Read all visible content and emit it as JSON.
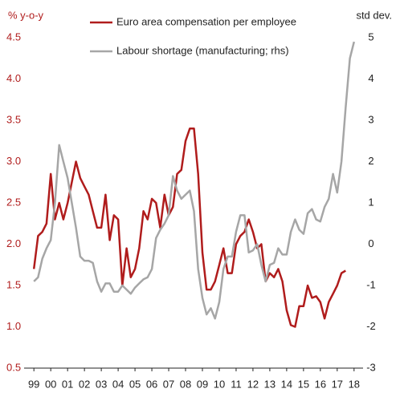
{
  "chart_data": {
    "type": "line",
    "y_label": "% y-o-y",
    "y2_label": "std dev.",
    "xlim": [
      1998.8,
      2018.2
    ],
    "xticks": [
      {
        "value": 1999,
        "label": "99"
      },
      {
        "value": 2000,
        "label": "00"
      },
      {
        "value": 2001,
        "label": "01"
      },
      {
        "value": 2002,
        "label": "02"
      },
      {
        "value": 2003,
        "label": "03"
      },
      {
        "value": 2004,
        "label": "04"
      },
      {
        "value": 2005,
        "label": "05"
      },
      {
        "value": 2006,
        "label": "06"
      },
      {
        "value": 2007,
        "label": "07"
      },
      {
        "value": 2008,
        "label": "08"
      },
      {
        "value": 2009,
        "label": "09"
      },
      {
        "value": 2010,
        "label": "10"
      },
      {
        "value": 2011,
        "label": "11"
      },
      {
        "value": 2012,
        "label": "12"
      },
      {
        "value": 2013,
        "label": "13"
      },
      {
        "value": 2014,
        "label": "14"
      },
      {
        "value": 2015,
        "label": "15"
      },
      {
        "value": 2016,
        "label": "16"
      },
      {
        "value": 2017,
        "label": "17"
      },
      {
        "value": 2018,
        "label": "18"
      }
    ],
    "ylim": [
      0.5,
      4.5
    ],
    "yticks": [
      0.5,
      1.0,
      1.5,
      2.0,
      2.5,
      3.0,
      3.5,
      4.0,
      4.5
    ],
    "ytick_labels": [
      "0.5",
      "1.0",
      "1.5",
      "2.0",
      "2.5",
      "3.0",
      "3.5",
      "4.0",
      "4.5"
    ],
    "y2lim": [
      -3,
      5
    ],
    "y2ticks": [
      -3,
      -2,
      -1,
      0,
      1,
      2,
      3,
      4,
      5
    ],
    "grid": false,
    "series": [
      {
        "name": "Euro area compensation per employee",
        "color": "#b01c1c",
        "axis": "y",
        "x": [
          1999.0,
          1999.25,
          1999.5,
          1999.75,
          2000.0,
          2000.25,
          2000.5,
          2000.75,
          2001.0,
          2001.25,
          2001.5,
          2001.75,
          2002.0,
          2002.25,
          2002.5,
          2002.75,
          2003.0,
          2003.25,
          2003.5,
          2003.75,
          2004.0,
          2004.25,
          2004.5,
          2004.75,
          2005.0,
          2005.25,
          2005.5,
          2005.75,
          2006.0,
          2006.25,
          2006.5,
          2006.75,
          2007.0,
          2007.25,
          2007.5,
          2007.75,
          2008.0,
          2008.25,
          2008.5,
          2008.75,
          2009.0,
          2009.25,
          2009.5,
          2009.75,
          2010.0,
          2010.25,
          2010.5,
          2010.75,
          2011.0,
          2011.25,
          2011.5,
          2011.75,
          2012.0,
          2012.25,
          2012.5,
          2012.75,
          2013.0,
          2013.25,
          2013.5,
          2013.75,
          2014.0,
          2014.25,
          2014.5,
          2014.75,
          2015.0,
          2015.25,
          2015.5,
          2015.75,
          2016.0,
          2016.25,
          2016.5,
          2016.75,
          2017.0,
          2017.25,
          2017.5
        ],
        "values": [
          1.7,
          2.1,
          2.15,
          2.25,
          2.85,
          2.3,
          2.5,
          2.3,
          2.5,
          2.75,
          3.0,
          2.8,
          2.7,
          2.6,
          2.4,
          2.2,
          2.2,
          2.6,
          2.05,
          2.35,
          2.3,
          1.5,
          1.95,
          1.6,
          1.7,
          1.95,
          2.4,
          2.3,
          2.55,
          2.5,
          2.2,
          2.6,
          2.35,
          2.45,
          2.85,
          2.9,
          3.25,
          3.4,
          3.4,
          2.85,
          1.9,
          1.45,
          1.45,
          1.55,
          1.75,
          1.95,
          1.65,
          1.65,
          2.0,
          2.1,
          2.15,
          2.3,
          2.15,
          1.95,
          2.0,
          1.55,
          1.65,
          1.6,
          1.7,
          1.55,
          1.2,
          1.02,
          1.0,
          1.25,
          1.25,
          1.5,
          1.35,
          1.37,
          1.3,
          1.1,
          1.3,
          1.4,
          1.5,
          1.65,
          1.68
        ]
      },
      {
        "name": "Labour shortage (manufacturing; rhs)",
        "color": "#a6a6a6",
        "axis": "y2",
        "x": [
          1999.0,
          1999.25,
          1999.5,
          1999.75,
          2000.0,
          2000.25,
          2000.5,
          2000.75,
          2001.0,
          2001.25,
          2001.5,
          2001.75,
          2002.0,
          2002.25,
          2002.5,
          2002.75,
          2003.0,
          2003.25,
          2003.5,
          2003.75,
          2004.0,
          2004.25,
          2004.5,
          2004.75,
          2005.0,
          2005.25,
          2005.5,
          2005.75,
          2006.0,
          2006.25,
          2006.5,
          2006.75,
          2007.0,
          2007.25,
          2007.5,
          2007.75,
          2008.0,
          2008.25,
          2008.5,
          2008.75,
          2009.0,
          2009.25,
          2009.5,
          2009.75,
          2010.0,
          2010.25,
          2010.5,
          2010.75,
          2011.0,
          2011.25,
          2011.5,
          2011.75,
          2012.0,
          2012.25,
          2012.5,
          2012.75,
          2013.0,
          2013.25,
          2013.5,
          2013.75,
          2014.0,
          2014.25,
          2014.5,
          2014.75,
          2015.0,
          2015.25,
          2015.5,
          2015.75,
          2016.0,
          2016.25,
          2016.5,
          2016.75,
          2017.0,
          2017.25,
          2017.5,
          2017.75,
          2018.0
        ],
        "values": [
          -0.9,
          -0.8,
          -0.35,
          -0.1,
          0.1,
          1.0,
          2.4,
          2.0,
          1.6,
          1.0,
          0.4,
          -0.3,
          -0.4,
          -0.4,
          -0.45,
          -0.9,
          -1.15,
          -0.95,
          -0.95,
          -1.15,
          -1.15,
          -1.0,
          -1.1,
          -1.2,
          -1.05,
          -0.95,
          -0.85,
          -0.8,
          -0.6,
          0.15,
          0.35,
          0.5,
          0.7,
          1.65,
          1.3,
          1.1,
          1.2,
          1.3,
          0.8,
          -0.6,
          -1.3,
          -1.7,
          -1.55,
          -1.8,
          -1.4,
          -0.6,
          -0.3,
          -0.3,
          0.3,
          0.7,
          0.7,
          -0.2,
          -0.15,
          0.0,
          -0.5,
          -0.9,
          -0.5,
          -0.45,
          -0.1,
          -0.25,
          -0.25,
          0.3,
          0.6,
          0.35,
          0.25,
          0.75,
          0.85,
          0.6,
          0.55,
          0.9,
          1.1,
          1.7,
          1.25,
          2.0,
          3.3,
          4.5,
          4.9
        ]
      }
    ]
  }
}
